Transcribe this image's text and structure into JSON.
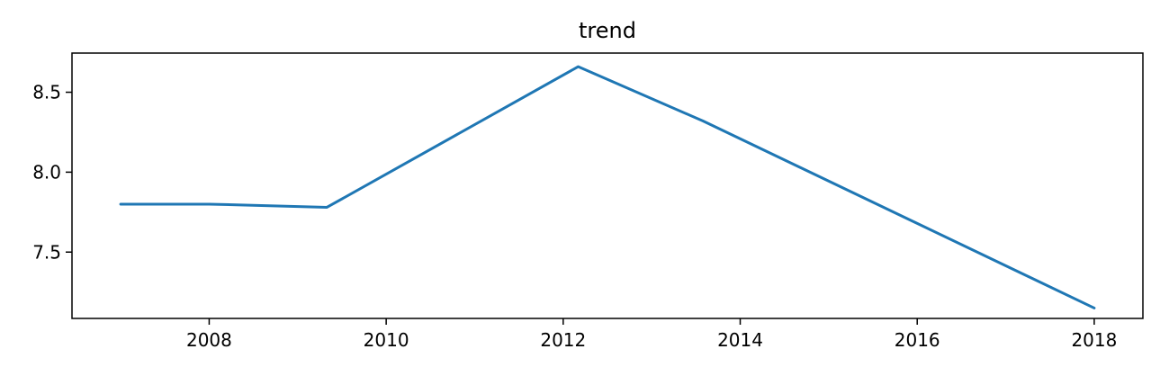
{
  "chart_data": {
    "type": "line",
    "title": "trend",
    "xlabel": "",
    "ylabel": "",
    "x": [
      2007.0,
      2008.0,
      2009.33,
      2012.17,
      2013.58,
      2018.0
    ],
    "series": [
      {
        "values": [
          7.8,
          7.8,
          7.78,
          8.66,
          8.32,
          7.15
        ],
        "color": "#1f77b4"
      }
    ],
    "xlim": [
      2006.45,
      2018.55
    ],
    "ylim": [
      7.085,
      8.745
    ],
    "xticks": [
      2008,
      2010,
      2012,
      2014,
      2016,
      2018
    ],
    "yticks": [
      7.5,
      8.0,
      8.5
    ],
    "xtick_labels": [
      "2008",
      "2010",
      "2012",
      "2014",
      "2016",
      "2018"
    ],
    "ytick_labels": [
      "7.5",
      "8.0",
      "8.5"
    ],
    "grid": false,
    "legend": false
  }
}
